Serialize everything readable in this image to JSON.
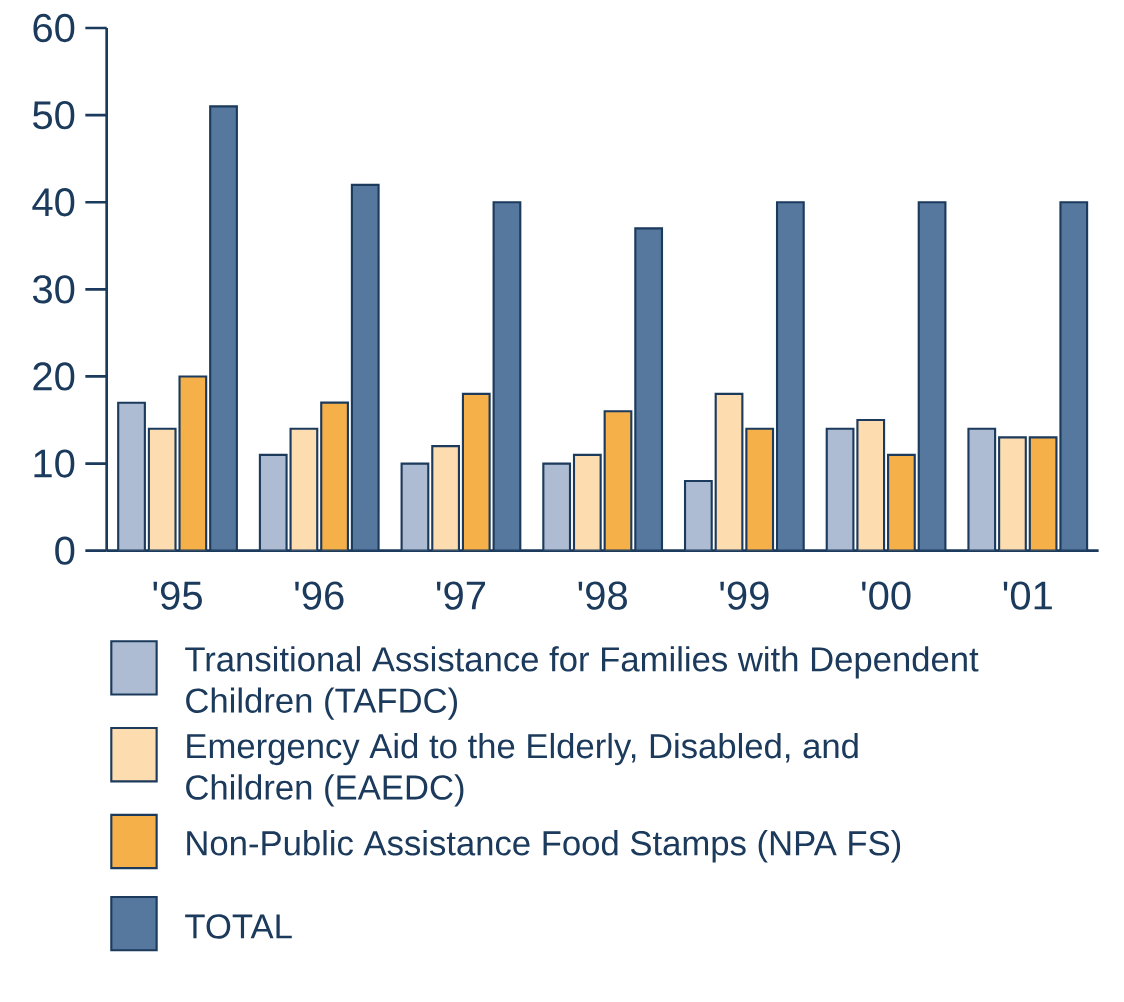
{
  "chart_data": {
    "type": "bar",
    "categories": [
      "'95",
      "'96",
      "'97",
      "'98",
      "'99",
      "'00",
      "'01"
    ],
    "series": [
      {
        "name": "Transitional Assistance for Families with Dependent Children (TAFDC)",
        "color": "#aebcd3",
        "values": [
          17,
          11,
          10,
          10,
          8,
          14,
          14
        ]
      },
      {
        "name": "Emergency Aid to the Elderly, Disabled, and Children (EAEDC)",
        "color": "#fddcb0",
        "values": [
          14,
          14,
          12,
          11,
          18,
          15,
          13
        ]
      },
      {
        "name": "Non-Public Assistance Food Stamps (NPA FS)",
        "color": "#f5b04a",
        "values": [
          20,
          17,
          18,
          16,
          14,
          11,
          13
        ]
      },
      {
        "name": "TOTAL",
        "color": "#56789e",
        "values": [
          51,
          42,
          40,
          37,
          40,
          40,
          40
        ]
      }
    ],
    "ylim": [
      0,
      60
    ],
    "yticks": [
      0,
      10,
      20,
      30,
      40,
      50,
      60
    ],
    "grid": false,
    "legend": "bottom"
  }
}
